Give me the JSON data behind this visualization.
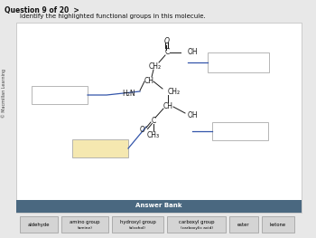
{
  "title": "Question 9 of 20  >",
  "subtitle": "Identify the highlighted functional groups in this molecule.",
  "copyright": "© Macmillan Learning",
  "bg_color": "#e8e8e8",
  "panel_bg": "#ffffff",
  "answer_bank_bg": "#4a6880",
  "answer_bank_label": "Answer Bank",
  "answer_buttons": [
    "aldehyde",
    "amino group\n(amine)",
    "hydroxyl group\n(alcohol)",
    "carboxyl group\n(carboxylic acid)",
    "ester",
    "ketone"
  ],
  "mol_color": "#1a1a1a",
  "line_color": "#3355aa",
  "box_border": "#aaaaaa",
  "mol_fs": 5.5,
  "highlight_yellow": "#f5e8b0"
}
